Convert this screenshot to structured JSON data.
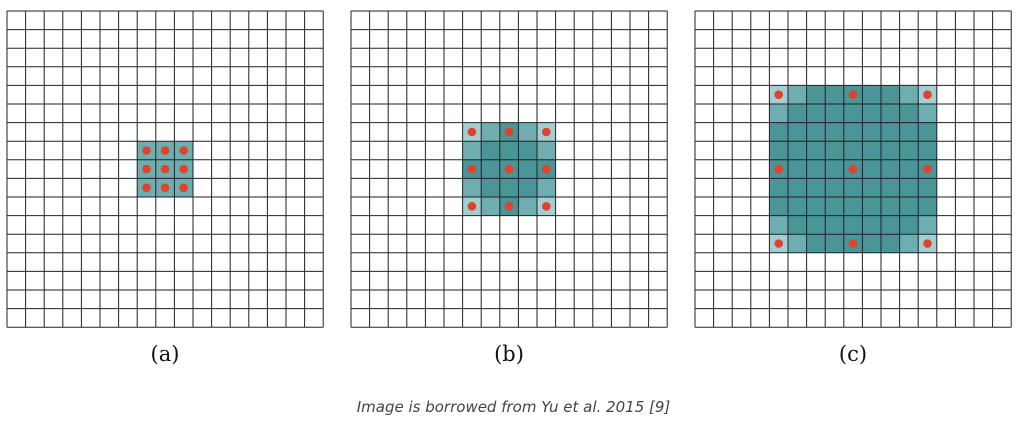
{
  "grid": {
    "cells": 17,
    "line_color": "#222222",
    "dot_color": "#e0422b",
    "shade_colors": [
      "#a3cfd2",
      "#6eadb0",
      "#4a9597"
    ]
  },
  "panels": [
    {
      "label": "(a)",
      "dilation": 1
    },
    {
      "label": "(b)",
      "dilation": 2
    },
    {
      "label": "(c)",
      "dilation": 4
    }
  ],
  "caption": "Image is borrowed from Yu et al. 2015 [9]"
}
